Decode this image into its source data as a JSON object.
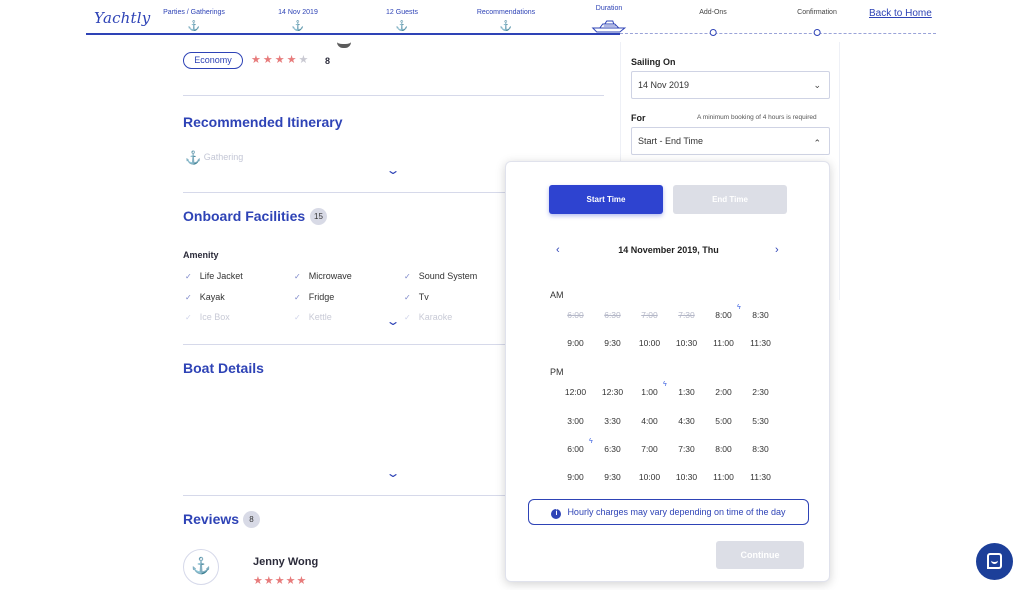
{
  "header": {
    "logo": "Yachtly",
    "home_link": "Back to Home",
    "steps": [
      {
        "label": "Parties / Gatherings",
        "state": "done",
        "icon": "anchor-icon"
      },
      {
        "label": "14 Nov 2019",
        "state": "done",
        "icon": "anchor-icon"
      },
      {
        "label": "12 Guests",
        "state": "done",
        "icon": "anchor-icon"
      },
      {
        "label": "Recommendations",
        "state": "done",
        "icon": "anchor-icon"
      },
      {
        "label": "Duration",
        "state": "current",
        "icon": "yacht-icon"
      },
      {
        "label": "Add-Ons",
        "state": "future",
        "icon": "dot-icon"
      },
      {
        "label": "Confirmation",
        "state": "future",
        "icon": "dot-icon"
      }
    ]
  },
  "listing": {
    "class_badge": "Economy",
    "rating_stars": 4,
    "rating_max": 5,
    "rating_count": "8"
  },
  "itinerary": {
    "title": "Recommended Itinerary",
    "item": "Gathering"
  },
  "facilities": {
    "title": "Onboard Facilities",
    "count": "15",
    "group_title": "Amenity",
    "items": [
      [
        "Life Jacket",
        "Microwave",
        "Sound System"
      ],
      [
        "Kayak",
        "Fridge",
        "Tv"
      ],
      [
        "Ice Box",
        "Kettle",
        "Karaoke"
      ]
    ]
  },
  "boat_details": {
    "title": "Boat Details"
  },
  "reviews": {
    "title": "Reviews",
    "count": "8",
    "reviewer": "Jenny Wong",
    "stars": "★★★★★"
  },
  "booking": {
    "sailing_label": "Sailing On",
    "sailing_value": "14 Nov 2019",
    "for_label": "For",
    "min_hint": "A minimum booking of 4 hours is required",
    "time_placeholder": "Start - End Time"
  },
  "picker": {
    "tab_start": "Start Time",
    "tab_end": "End Time",
    "date": "14 November 2019, Thu",
    "am_label": "AM",
    "pm_label": "PM",
    "am_slots": [
      [
        "6:00",
        "6:30",
        "7:00",
        "7:30",
        "8:00",
        "8:30"
      ],
      [
        "9:00",
        "9:30",
        "10:00",
        "10:30",
        "11:00",
        "11:30"
      ]
    ],
    "pm_slots": [
      [
        "12:00",
        "12:30",
        "1:00",
        "1:30",
        "2:00",
        "2:30"
      ],
      [
        "3:00",
        "3:30",
        "4:00",
        "4:30",
        "5:00",
        "5:30"
      ],
      [
        "6:00",
        "6:30",
        "7:00",
        "7:30",
        "8:00",
        "8:30"
      ],
      [
        "9:00",
        "9:30",
        "10:00",
        "10:30",
        "11:00",
        "11:30"
      ]
    ],
    "notice": "Hourly charges may vary depending on time of the day",
    "continue_label": "Continue"
  },
  "colors": {
    "brand": "#2e43b6",
    "star": "#e77b7b",
    "chat": "#1c3f99"
  }
}
